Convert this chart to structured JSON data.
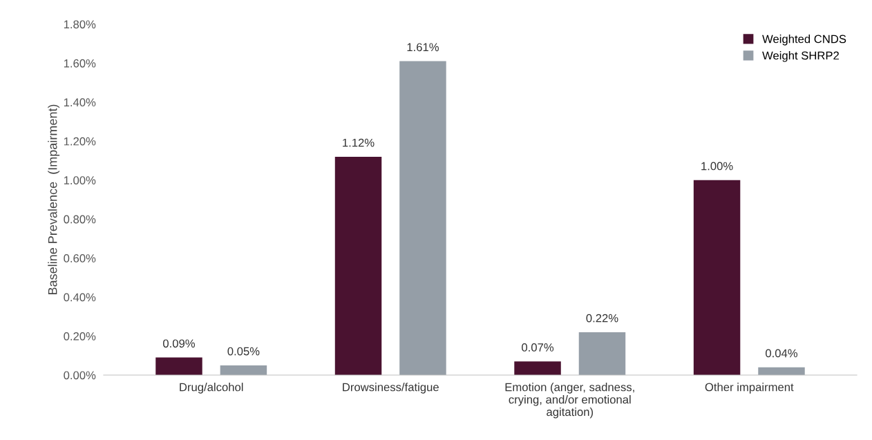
{
  "chart_data": {
    "type": "bar",
    "ylabel": "Baseline Prevalence  (Impairment)",
    "categories": [
      "Drug/alcohol",
      "Drowsiness/fatigue",
      "Emotion (anger, sadness, crying, and/or emotional agitation)",
      "Other impairment"
    ],
    "series": [
      {
        "name": "Weighted CNDS",
        "color": "#4a1230",
        "values": [
          0.09,
          1.12,
          0.07,
          1.0
        ],
        "value_labels": [
          "0.09%",
          "1.12%",
          "0.07%",
          "1.00%"
        ]
      },
      {
        "name": "Weight SHRP2",
        "color": "#959ea7",
        "values": [
          0.05,
          1.61,
          0.22,
          0.04
        ],
        "value_labels": [
          "0.05%",
          "1.61%",
          "0.22%",
          "0.04%"
        ]
      }
    ],
    "ylim": [
      0,
      1.8
    ],
    "yticks": [
      {
        "value": 0,
        "label": "0.00%"
      },
      {
        "value": 0.2,
        "label": "0.20%"
      },
      {
        "value": 0.4,
        "label": "0.40%"
      },
      {
        "value": 0.6,
        "label": "0.60%"
      },
      {
        "value": 0.8,
        "label": "0.80%"
      },
      {
        "value": 1.0,
        "label": "1.00%"
      },
      {
        "value": 1.2,
        "label": "1.20%"
      },
      {
        "value": 1.4,
        "label": "1.40%"
      },
      {
        "value": 1.6,
        "label": "1.60%"
      },
      {
        "value": 1.8,
        "label": "1.80%"
      }
    ],
    "grid": false,
    "legend": "top right"
  }
}
